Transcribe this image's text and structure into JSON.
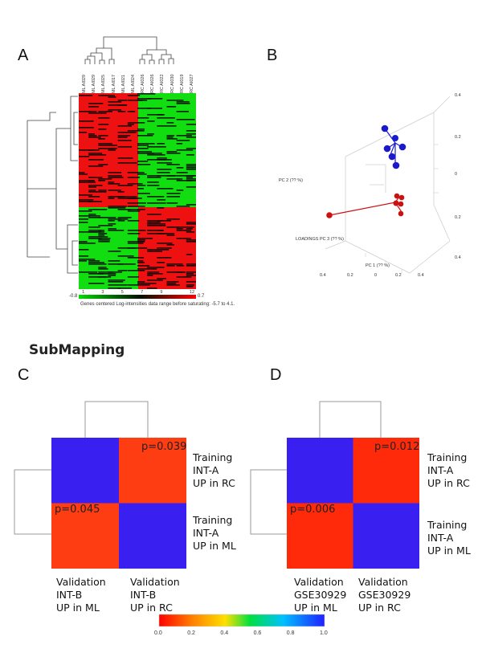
{
  "panels": {
    "a": "A",
    "b": "B",
    "c": "C",
    "d": "D"
  },
  "section_title": "SubMapping",
  "heatmap_a": {
    "columns": [
      "ML AI029",
      "ML AI029",
      "ML AI025",
      "ML AI017",
      "ML AI021",
      "ML AI024",
      "RC AI026",
      "RC AI026",
      "RC AI022",
      "RC AI030",
      "RC AI019",
      "RC AI027"
    ],
    "col_numbers": [
      "1",
      "3",
      "5",
      "7",
      "9",
      "12"
    ],
    "colorbar_min": "-0.8",
    "colorbar_max": "0.7",
    "caption": "Genes centered Log-intensities data range before saturating: -5.7 to 4.1.",
    "colors": {
      "up": "#ee1111",
      "down": "#11dd11",
      "zero": "#000000"
    }
  },
  "pca_b": {
    "axis_label_1": "PC 1 (?? %)",
    "axis_label_2": "PC 2 (?? %)",
    "axis_label_3": "LOADINGS PC 3 (?? %)",
    "tick_values": [
      "0.4",
      "0.2",
      "0",
      "0.2",
      "0.4"
    ],
    "colors": {
      "group_ml": "#1a1acc",
      "group_rc": "#cc1111"
    }
  },
  "submap_c": {
    "cells": [
      {
        "value": 1.0,
        "label": ""
      },
      {
        "value": 0.039,
        "label": "p=0.039"
      },
      {
        "value": 0.045,
        "label": "p=0.045"
      },
      {
        "value": 1.0,
        "label": ""
      }
    ],
    "row_labels": [
      [
        "Training",
        "INT-A",
        "UP in RC"
      ],
      [
        "Training",
        "INT-A",
        "UP in ML"
      ]
    ],
    "col_labels": [
      [
        "Validation",
        "INT-B",
        "UP in ML"
      ],
      [
        "Validation",
        "INT-B",
        "UP in RC"
      ]
    ]
  },
  "submap_d": {
    "cells": [
      {
        "value": 1.0,
        "label": ""
      },
      {
        "value": 0.012,
        "label": "p=0.012"
      },
      {
        "value": 0.006,
        "label": "p=0.006"
      },
      {
        "value": 1.0,
        "label": ""
      }
    ],
    "row_labels": [
      [
        "Training",
        "INT-A",
        "UP in RC"
      ],
      [
        "Training",
        "INT-A",
        "UP in ML"
      ]
    ],
    "col_labels": [
      [
        "Validation",
        "GSE30929",
        "UP in ML"
      ],
      [
        "Validation",
        "GSE30929",
        "UP in RC"
      ]
    ]
  },
  "colorbar": {
    "ticks": [
      "0.0",
      "0.2",
      "0.4",
      "0.6",
      "0.8",
      "1.0"
    ],
    "colors": [
      "#ff0000",
      "#ff8000",
      "#ffe000",
      "#00e040",
      "#00c0ff",
      "#2020ff"
    ]
  }
}
